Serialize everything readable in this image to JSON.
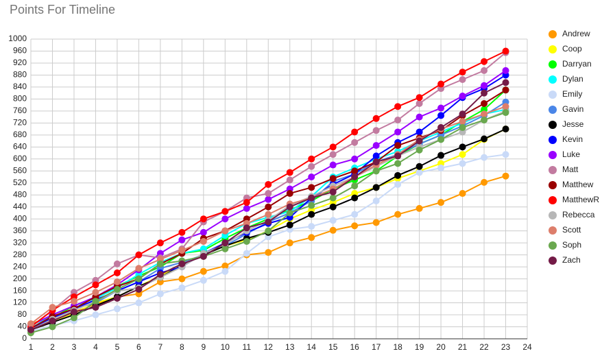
{
  "chart_data": {
    "type": "line",
    "title": "Points For Timeline",
    "x": [
      1,
      2,
      3,
      4,
      5,
      6,
      7,
      8,
      9,
      10,
      11,
      12,
      13,
      14,
      15,
      16,
      17,
      18,
      19,
      20,
      21,
      22,
      23
    ],
    "xlim": [
      1,
      24
    ],
    "xticks": [
      1,
      2,
      3,
      4,
      5,
      6,
      7,
      8,
      9,
      10,
      11,
      12,
      13,
      14,
      15,
      16,
      17,
      18,
      19,
      20,
      21,
      22,
      23,
      24
    ],
    "ylim": [
      0,
      1000
    ],
    "yticks": [
      0,
      40,
      80,
      120,
      160,
      200,
      240,
      280,
      320,
      360,
      400,
      440,
      480,
      520,
      560,
      600,
      640,
      680,
      720,
      760,
      800,
      840,
      880,
      920,
      960,
      1000
    ],
    "grid": true,
    "legend": "right",
    "series": [
      {
        "name": "Andrew",
        "color": "#ff9900",
        "values": [
          50,
          75,
          90,
          115,
          140,
          150,
          190,
          200,
          225,
          243,
          280,
          288,
          320,
          338,
          362,
          377,
          388,
          415,
          435,
          455,
          485,
          522,
          543
        ]
      },
      {
        "name": "Coop",
        "color": "#ffff00",
        "values": [
          30,
          60,
          85,
          120,
          140,
          175,
          210,
          245,
          280,
          310,
          330,
          360,
          400,
          430,
          455,
          485,
          505,
          535,
          560,
          585,
          615,
          665,
          700
        ]
      },
      {
        "name": "Darryan",
        "color": "#00ff00",
        "values": [
          30,
          70,
          110,
          135,
          175,
          210,
          240,
          285,
          295,
          335,
          370,
          400,
          430,
          460,
          500,
          530,
          560,
          610,
          650,
          680,
          725,
          765,
          830
        ]
      },
      {
        "name": "Dylan",
        "color": "#00ffff",
        "values": [
          35,
          80,
          110,
          135,
          170,
          215,
          255,
          285,
          300,
          345,
          385,
          405,
          425,
          475,
          540,
          570,
          600,
          625,
          660,
          690,
          720,
          750,
          765
        ]
      },
      {
        "name": "Emily",
        "color": "#c9daf8",
        "values": [
          25,
          45,
          60,
          80,
          100,
          120,
          150,
          170,
          195,
          225,
          285,
          340,
          365,
          375,
          395,
          415,
          460,
          515,
          555,
          570,
          585,
          605,
          615
        ]
      },
      {
        "name": "Gavin",
        "color": "#4a86e8",
        "values": [
          35,
          70,
          100,
          120,
          160,
          190,
          235,
          255,
          280,
          310,
          350,
          390,
          420,
          460,
          525,
          550,
          590,
          615,
          650,
          680,
          710,
          745,
          790
        ]
      },
      {
        "name": "Jesse",
        "color": "#000000",
        "values": [
          30,
          55,
          80,
          110,
          140,
          175,
          205,
          245,
          280,
          310,
          335,
          355,
          380,
          415,
          440,
          470,
          505,
          545,
          575,
          612,
          640,
          667,
          700
        ]
      },
      {
        "name": "Kevin",
        "color": "#0000ff",
        "values": [
          35,
          70,
          100,
          130,
          160,
          190,
          220,
          240,
          285,
          320,
          355,
          385,
          405,
          470,
          515,
          550,
          610,
          655,
          690,
          745,
          805,
          835,
          880
        ]
      },
      {
        "name": "Luke",
        "color": "#9900ff",
        "values": [
          45,
          80,
          110,
          140,
          180,
          230,
          285,
          330,
          355,
          400,
          435,
          465,
          500,
          540,
          580,
          600,
          645,
          690,
          740,
          770,
          810,
          845,
          895
        ]
      },
      {
        "name": "Matt",
        "color": "#c27ba0",
        "values": [
          40,
          95,
          155,
          195,
          250,
          280,
          270,
          300,
          390,
          425,
          470,
          485,
          530,
          575,
          615,
          655,
          695,
          730,
          785,
          835,
          865,
          895,
          955
        ]
      },
      {
        "name": "Matthew",
        "color": "#990000",
        "values": [
          35,
          75,
          100,
          140,
          175,
          200,
          250,
          285,
          335,
          360,
          400,
          440,
          485,
          505,
          535,
          560,
          590,
          645,
          670,
          695,
          745,
          785,
          830
        ]
      },
      {
        "name": "MatthewR",
        "color": "#ff0000",
        "values": [
          40,
          95,
          140,
          180,
          220,
          280,
          320,
          355,
          400,
          425,
          455,
          515,
          555,
          600,
          640,
          690,
          735,
          775,
          805,
          850,
          890,
          925,
          960
        ]
      },
      {
        "name": "Rebecca",
        "color": "#b7b7b7",
        "values": [
          30,
          65,
          95,
          125,
          160,
          170,
          205,
          240,
          285,
          315,
          360,
          395,
          445,
          475,
          510,
          540,
          575,
          610,
          640,
          665,
          690,
          730,
          760
        ]
      },
      {
        "name": "Scott",
        "color": "#dd7e6b",
        "values": [
          50,
          105,
          125,
          155,
          190,
          235,
          265,
          295,
          325,
          360,
          385,
          415,
          450,
          470,
          500,
          540,
          580,
          615,
          665,
          700,
          725,
          750,
          775
        ]
      },
      {
        "name": "Soph",
        "color": "#6aa84f",
        "values": [
          20,
          40,
          70,
          125,
          165,
          200,
          250,
          260,
          275,
          300,
          325,
          360,
          420,
          445,
          470,
          510,
          560,
          585,
          630,
          665,
          705,
          730,
          755
        ]
      },
      {
        "name": "Zach",
        "color": "#741b47",
        "values": [
          30,
          60,
          90,
          105,
          135,
          165,
          215,
          250,
          275,
          320,
          370,
          390,
          440,
          470,
          490,
          540,
          590,
          610,
          660,
          705,
          750,
          820,
          855
        ]
      }
    ]
  }
}
